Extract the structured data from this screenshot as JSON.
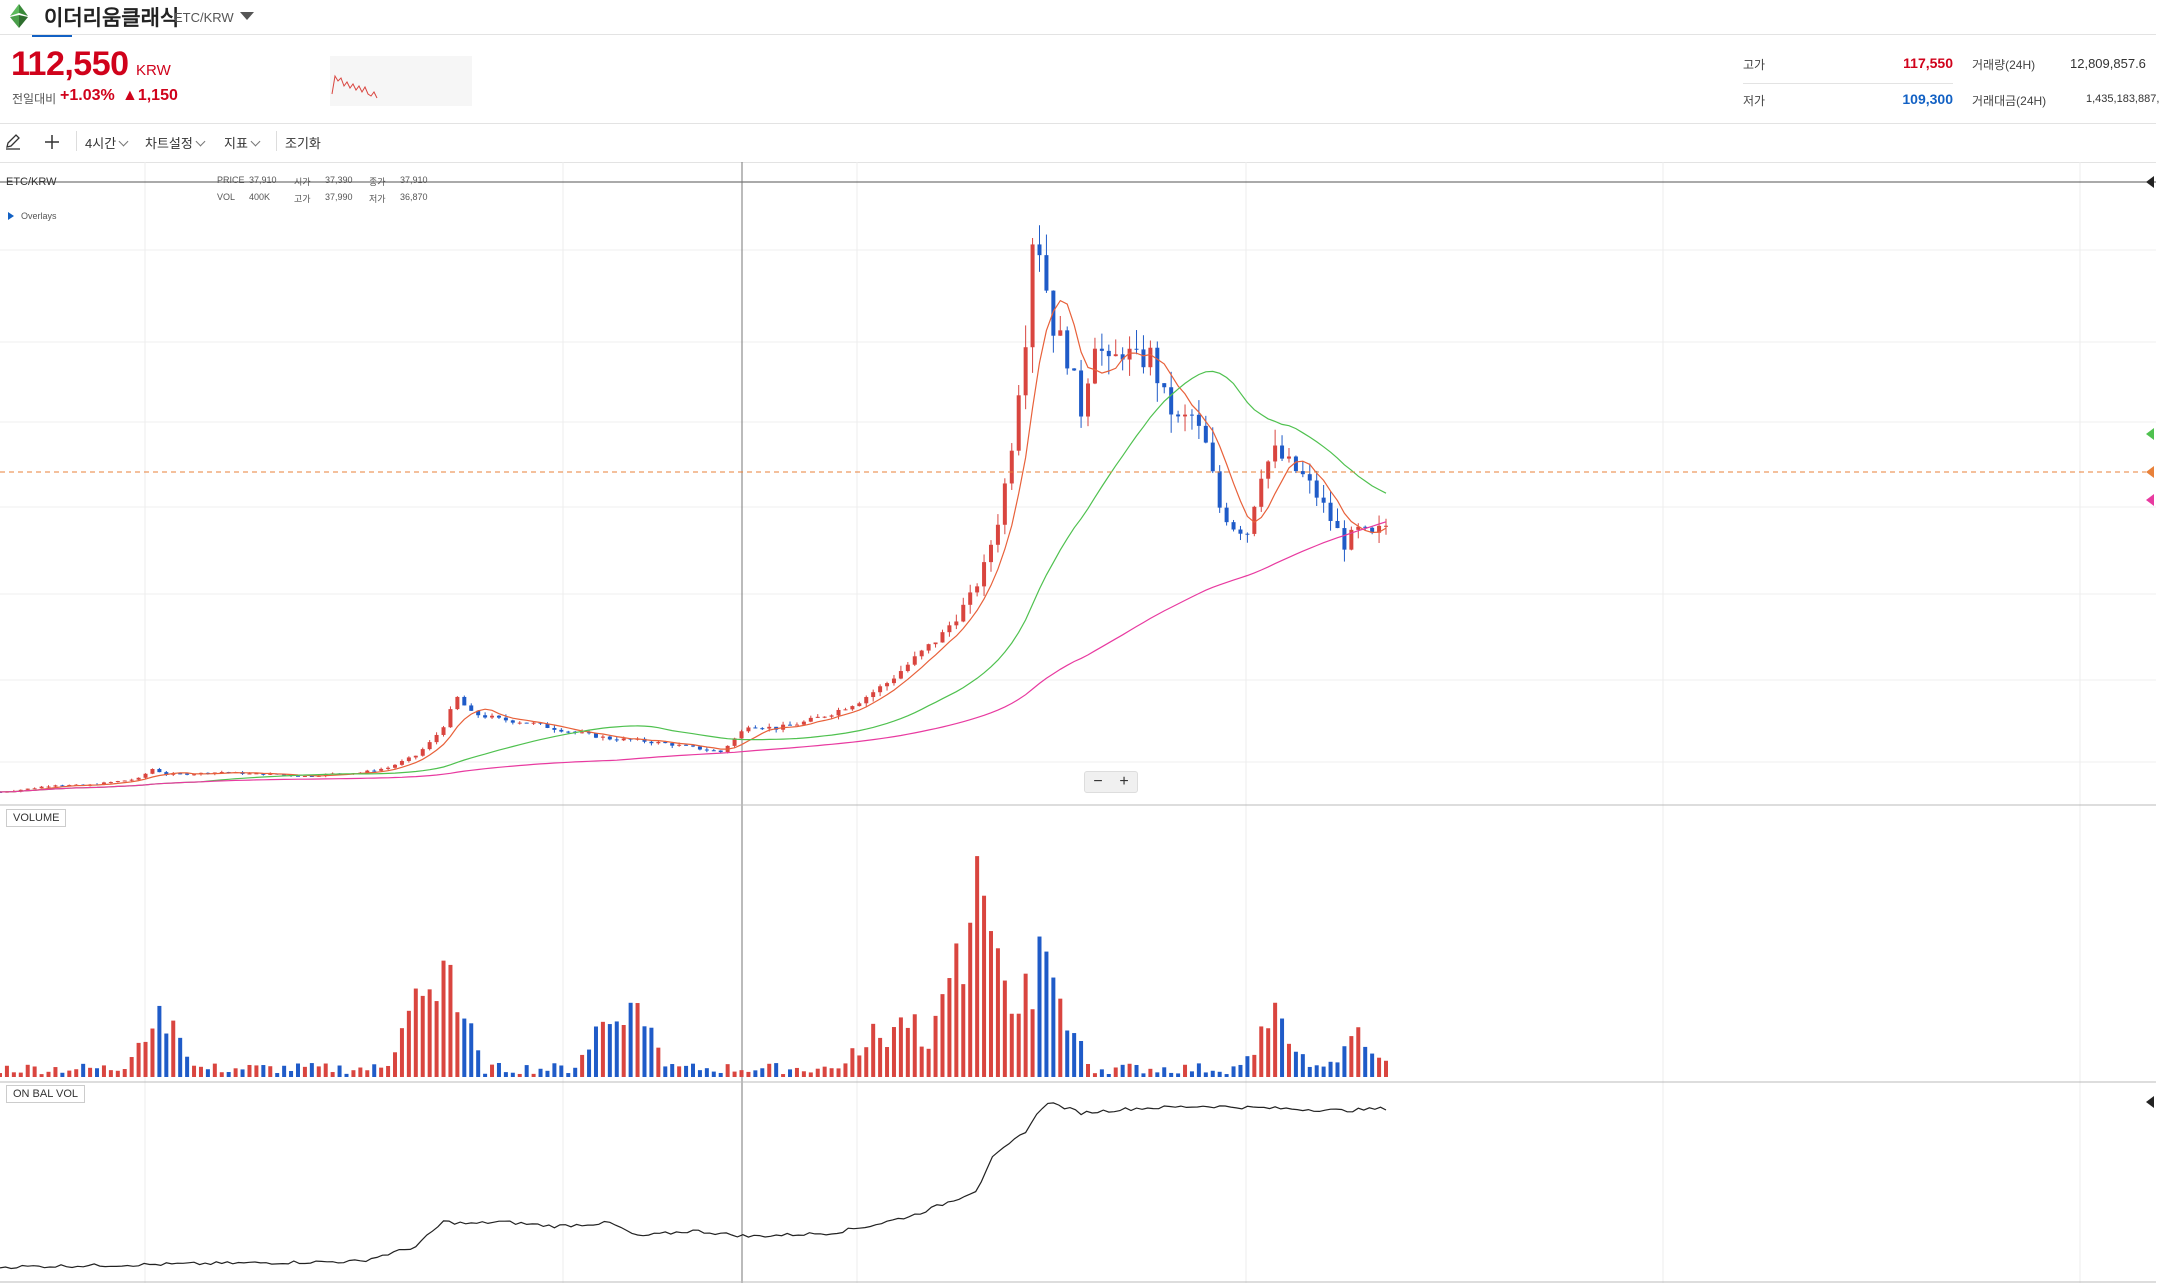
{
  "header": {
    "coin_name": "이더리움클래식",
    "pair": "ETC/KRW",
    "price": "112,550",
    "price_unit": "KRW",
    "change_label": "전일대비",
    "change_rate": "+1.03%",
    "change_amount": "▲1,150"
  },
  "stats": {
    "high_label": "고가",
    "high_value": "117,550",
    "low_label": "저가",
    "low_value": "109,300",
    "volume_label": "거래량(24H)",
    "volume_value": "12,809,857.6",
    "amount_label": "거래대금(24H)",
    "amount_value": "1,435,183,887,"
  },
  "toolbar": {
    "interval": "4시간",
    "chart_settings": "차트설정",
    "indicators": "지표",
    "reset": "조기화"
  },
  "chart_info": {
    "pair": "ETC/KRW",
    "overlays": "Overlays",
    "price_label": "PRICE",
    "price_val": "37,910",
    "open_label": "시가",
    "open_val": "37,390",
    "close_label": "종가",
    "close_val": "37,910",
    "vol_label": "VOL",
    "vol_val": "400K",
    "high_label": "고가",
    "high_val": "37,990",
    "low_label": "저가",
    "low_val": "36,870"
  },
  "panes": {
    "volume": "VOLUME",
    "obv": "ON BAL VOL"
  },
  "zoom": {
    "minus": "−",
    "plus": "+"
  },
  "colors": {
    "up": "#d9453f",
    "down": "#1f5bc8",
    "ma_short": "#e8613a",
    "ma_mid": "#4fc14f",
    "ma_long": "#e83aa0",
    "price_line": "#e8813a"
  },
  "chart_data": {
    "type": "candlestick",
    "note_series": [
      "price candles with 3 moving averages",
      "volume bars",
      "on-balance volume line"
    ],
    "price_points": [
      {
        "i": 0,
        "c": 1.0
      },
      {
        "i": 20,
        "c": 1.5
      },
      {
        "i": 40,
        "c": 2.2
      },
      {
        "i": 60,
        "c": 2.0
      },
      {
        "i": 80,
        "c": 2.6
      },
      {
        "i": 100,
        "c": 3.2
      },
      {
        "i": 110,
        "c": 4.8
      },
      {
        "i": 120,
        "c": 3.9
      },
      {
        "i": 140,
        "c": 4.0
      },
      {
        "i": 160,
        "c": 4.3
      },
      {
        "i": 180,
        "c": 4.0
      },
      {
        "i": 200,
        "c": 3.9
      },
      {
        "i": 220,
        "c": 3.6
      },
      {
        "i": 240,
        "c": 4.0
      },
      {
        "i": 260,
        "c": 4.2
      },
      {
        "i": 280,
        "c": 5.0
      },
      {
        "i": 300,
        "c": 7.0
      },
      {
        "i": 312,
        "c": 9.5
      },
      {
        "i": 320,
        "c": 12.0
      },
      {
        "i": 330,
        "c": 16.5
      },
      {
        "i": 340,
        "c": 14.0
      },
      {
        "i": 360,
        "c": 13.0
      },
      {
        "i": 380,
        "c": 12.5
      },
      {
        "i": 400,
        "c": 11.5
      },
      {
        "i": 420,
        "c": 10.6
      },
      {
        "i": 440,
        "c": 9.8
      },
      {
        "i": 460,
        "c": 9.5
      },
      {
        "i": 480,
        "c": 9.0
      },
      {
        "i": 500,
        "c": 8.3
      },
      {
        "i": 520,
        "c": 7.6
      },
      {
        "i": 530,
        "c": 9.8
      },
      {
        "i": 540,
        "c": 12.0
      },
      {
        "i": 560,
        "c": 11.5
      },
      {
        "i": 580,
        "c": 12.5
      },
      {
        "i": 600,
        "c": 14.0
      },
      {
        "i": 620,
        "c": 16.0
      },
      {
        "i": 640,
        "c": 19.0
      },
      {
        "i": 660,
        "c": 23.0
      },
      {
        "i": 680,
        "c": 27.0
      },
      {
        "i": 700,
        "c": 33.0
      },
      {
        "i": 710,
        "c": 38.0
      },
      {
        "i": 720,
        "c": 46.0
      },
      {
        "i": 728,
        "c": 55.0
      },
      {
        "i": 736,
        "c": 70.0
      },
      {
        "i": 742,
        "c": 80.0
      },
      {
        "i": 746,
        "c": 97.0
      },
      {
        "i": 752,
        "c": 88.0
      },
      {
        "i": 760,
        "c": 78.0
      },
      {
        "i": 770,
        "c": 73.0
      },
      {
        "i": 780,
        "c": 64.0
      },
      {
        "i": 790,
        "c": 76.0
      },
      {
        "i": 800,
        "c": 71.0
      },
      {
        "i": 810,
        "c": 74.0
      },
      {
        "i": 820,
        "c": 72.0
      },
      {
        "i": 830,
        "c": 73.0
      },
      {
        "i": 840,
        "c": 66.0
      },
      {
        "i": 850,
        "c": 62.0
      },
      {
        "i": 860,
        "c": 63.0
      },
      {
        "i": 870,
        "c": 58.0
      },
      {
        "i": 880,
        "c": 48.0
      },
      {
        "i": 890,
        "c": 45.0
      },
      {
        "i": 900,
        "c": 44.0
      },
      {
        "i": 910,
        "c": 54.0
      },
      {
        "i": 920,
        "c": 57.0
      },
      {
        "i": 930,
        "c": 55.0
      },
      {
        "i": 940,
        "c": 53.0
      },
      {
        "i": 950,
        "c": 50.0
      },
      {
        "i": 960,
        "c": 46.0
      },
      {
        "i": 970,
        "c": 42.0
      },
      {
        "i": 980,
        "c": 44.0
      },
      {
        "i": 990,
        "c": 43.0
      },
      {
        "i": 1000,
        "c": 45.0
      }
    ],
    "volume_peaks": [
      {
        "i": 115,
        "v": 30
      },
      {
        "i": 305,
        "v": 40
      },
      {
        "i": 320,
        "v": 58
      },
      {
        "i": 440,
        "v": 30
      },
      {
        "i": 455,
        "v": 36
      },
      {
        "i": 630,
        "v": 22
      },
      {
        "i": 655,
        "v": 28
      },
      {
        "i": 690,
        "v": 47
      },
      {
        "i": 708,
        "v": 90
      },
      {
        "i": 716,
        "v": 56
      },
      {
        "i": 750,
        "v": 56
      },
      {
        "i": 760,
        "v": 40
      },
      {
        "i": 920,
        "v": 28
      },
      {
        "i": 980,
        "v": 18
      }
    ],
    "obv_points": [
      {
        "i": 0,
        "v": 0
      },
      {
        "i": 100,
        "v": 2
      },
      {
        "i": 150,
        "v": 3
      },
      {
        "i": 260,
        "v": 5
      },
      {
        "i": 300,
        "v": 18
      },
      {
        "i": 320,
        "v": 40
      },
      {
        "i": 340,
        "v": 38
      },
      {
        "i": 360,
        "v": 40
      },
      {
        "i": 400,
        "v": 36
      },
      {
        "i": 440,
        "v": 39
      },
      {
        "i": 460,
        "v": 27
      },
      {
        "i": 500,
        "v": 32
      },
      {
        "i": 540,
        "v": 27
      },
      {
        "i": 600,
        "v": 30
      },
      {
        "i": 630,
        "v": 37
      },
      {
        "i": 660,
        "v": 46
      },
      {
        "i": 690,
        "v": 60
      },
      {
        "i": 705,
        "v": 68
      },
      {
        "i": 715,
        "v": 95
      },
      {
        "i": 740,
        "v": 120
      },
      {
        "i": 755,
        "v": 146
      },
      {
        "i": 780,
        "v": 136
      },
      {
        "i": 820,
        "v": 140
      },
      {
        "i": 870,
        "v": 142
      },
      {
        "i": 920,
        "v": 140
      },
      {
        "i": 970,
        "v": 138
      },
      {
        "i": 1000,
        "v": 140
      }
    ]
  }
}
